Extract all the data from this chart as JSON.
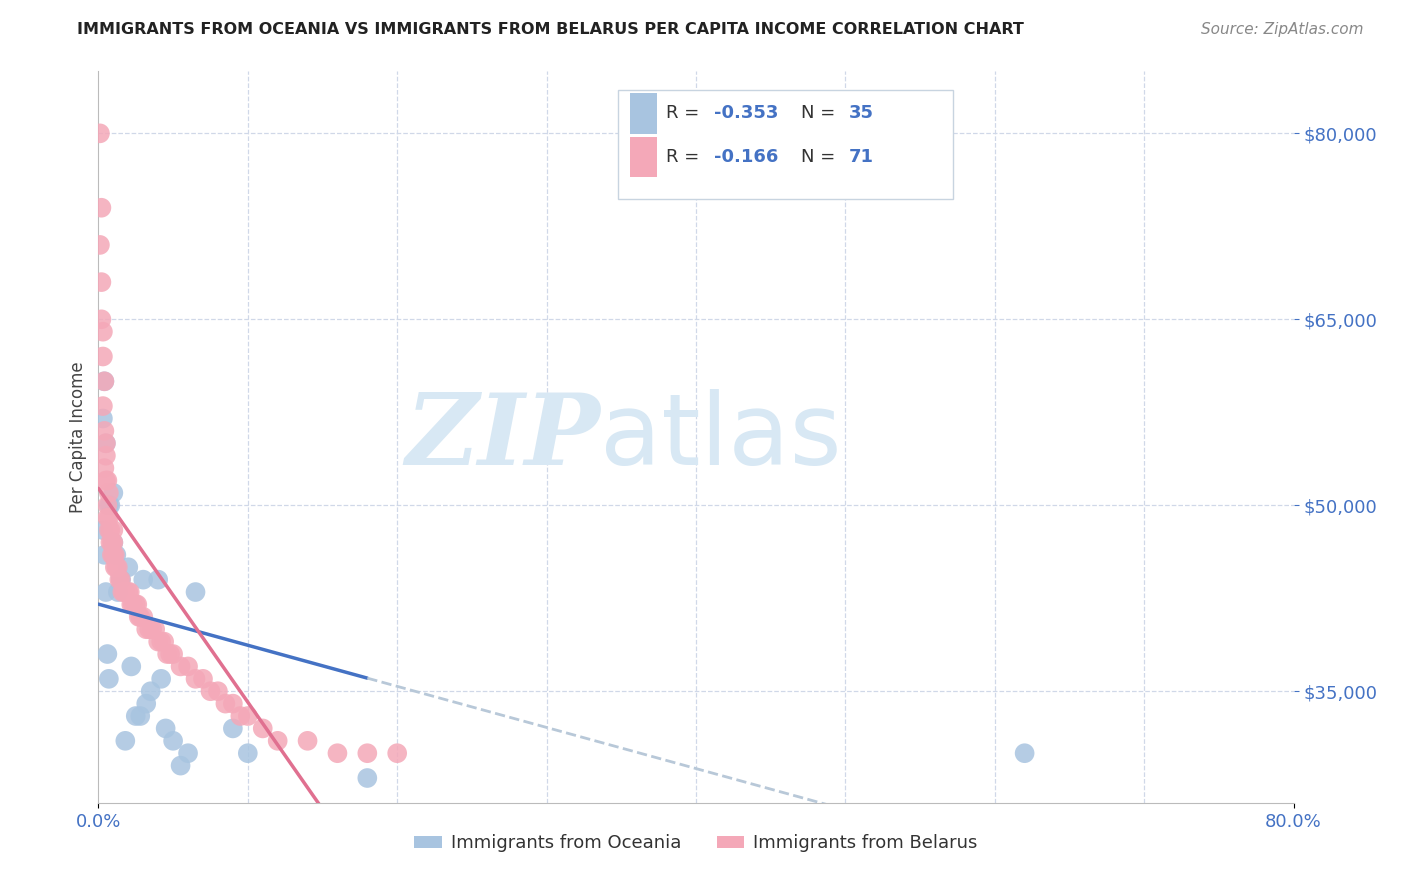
{
  "title": "IMMIGRANTS FROM OCEANIA VS IMMIGRANTS FROM BELARUS PER CAPITA INCOME CORRELATION CHART",
  "source": "Source: ZipAtlas.com",
  "ylabel": "Per Capita Income",
  "xlim": [
    0,
    0.8
  ],
  "ylim": [
    26000,
    85000
  ],
  "yticks": [
    35000,
    50000,
    65000,
    80000
  ],
  "ytick_labels": [
    "$35,000",
    "$50,000",
    "$65,000",
    "$80,000"
  ],
  "color_oceania": "#a8c4e0",
  "color_belarus": "#f4a8b8",
  "color_blue_line": "#4472c4",
  "color_pink_line": "#e07090",
  "color_dashed": "#b8c8d8",
  "color_ytick": "#4472c4",
  "color_xtick": "#4472c4",
  "watermark_zip": "ZIP",
  "watermark_atlas": "atlas",
  "watermark_color": "#d8e8f4",
  "legend_label1": "Immigrants from Oceania",
  "legend_label2": "Immigrants from Belarus",
  "oceania_x": [
    0.003,
    0.004,
    0.005,
    0.006,
    0.007,
    0.008,
    0.01,
    0.012,
    0.013,
    0.015,
    0.018,
    0.02,
    0.022,
    0.025,
    0.028,
    0.03,
    0.032,
    0.035,
    0.04,
    0.042,
    0.045,
    0.05,
    0.055,
    0.06,
    0.065,
    0.09,
    0.1,
    0.18,
    0.62,
    0.003,
    0.004,
    0.005,
    0.007,
    0.01,
    0.015
  ],
  "oceania_y": [
    57000,
    60000,
    43000,
    38000,
    36000,
    50000,
    51000,
    46000,
    43000,
    44000,
    31000,
    45000,
    37000,
    33000,
    33000,
    44000,
    34000,
    35000,
    44000,
    36000,
    32000,
    31000,
    29000,
    30000,
    43000,
    32000,
    30000,
    28000,
    30000,
    48000,
    46000,
    55000,
    50000,
    47000,
    44000
  ],
  "belarus_x": [
    0.001,
    0.001,
    0.002,
    0.002,
    0.002,
    0.003,
    0.003,
    0.003,
    0.004,
    0.004,
    0.004,
    0.005,
    0.005,
    0.005,
    0.006,
    0.006,
    0.006,
    0.007,
    0.007,
    0.007,
    0.008,
    0.008,
    0.009,
    0.009,
    0.01,
    0.01,
    0.01,
    0.011,
    0.011,
    0.012,
    0.013,
    0.014,
    0.015,
    0.016,
    0.017,
    0.018,
    0.02,
    0.021,
    0.022,
    0.023,
    0.025,
    0.026,
    0.027,
    0.028,
    0.03,
    0.032,
    0.034,
    0.036,
    0.038,
    0.04,
    0.042,
    0.044,
    0.046,
    0.048,
    0.05,
    0.055,
    0.06,
    0.065,
    0.07,
    0.075,
    0.08,
    0.085,
    0.09,
    0.095,
    0.1,
    0.11,
    0.12,
    0.14,
    0.16,
    0.18,
    0.2
  ],
  "belarus_y": [
    80000,
    71000,
    74000,
    68000,
    65000,
    64000,
    62000,
    58000,
    60000,
    56000,
    53000,
    55000,
    54000,
    52000,
    52000,
    50000,
    49000,
    51000,
    49000,
    48000,
    48000,
    47000,
    47000,
    46000,
    48000,
    47000,
    46000,
    46000,
    45000,
    45000,
    45000,
    44000,
    44000,
    43000,
    43000,
    43000,
    43000,
    43000,
    42000,
    42000,
    42000,
    42000,
    41000,
    41000,
    41000,
    40000,
    40000,
    40000,
    40000,
    39000,
    39000,
    39000,
    38000,
    38000,
    38000,
    37000,
    37000,
    36000,
    36000,
    35000,
    35000,
    34000,
    34000,
    33000,
    33000,
    32000,
    31000,
    31000,
    30000,
    30000,
    30000
  ]
}
